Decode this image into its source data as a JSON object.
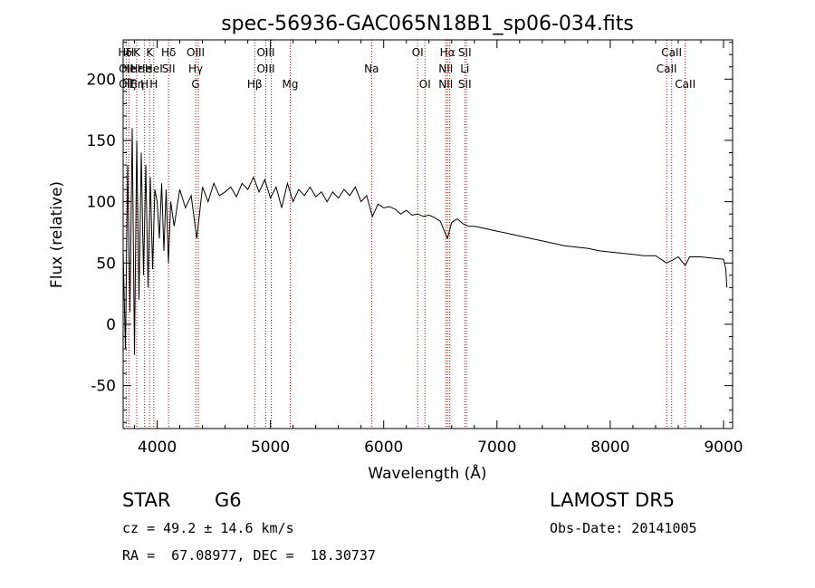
{
  "chart_data": {
    "type": "line",
    "title": "spec-56936-GAC065N18B1_sp06-034.fits",
    "xlabel": "Wavelength (Å)",
    "ylabel": "Flux (relative)",
    "xlim": [
      3700,
      9080
    ],
    "ylim": [
      -85,
      232
    ],
    "x_ticks": [
      4000,
      5000,
      6000,
      7000,
      8000,
      9000
    ],
    "y_ticks": [
      -50,
      0,
      50,
      100,
      150,
      200
    ],
    "line_color": "#000000",
    "marker_color": "#cc0000",
    "series": [
      {
        "x": [
          3700,
          3720,
          3740,
          3760,
          3780,
          3800,
          3820,
          3840,
          3860,
          3880,
          3900,
          3920,
          3940,
          3960,
          3980,
          4000,
          4020,
          4040,
          4060,
          4080,
          4100,
          4120,
          4150,
          4200,
          4250,
          4300,
          4350,
          4400,
          4450,
          4500,
          4550,
          4600,
          4650,
          4700,
          4750,
          4800,
          4850,
          4900,
          4950,
          5000,
          5050,
          5100,
          5150,
          5200,
          5250,
          5300,
          5350,
          5400,
          5450,
          5500,
          5550,
          5600,
          5650,
          5700,
          5750,
          5800,
          5850,
          5900,
          5950,
          6000,
          6050,
          6100,
          6150,
          6200,
          6250,
          6300,
          6350,
          6400,
          6450,
          6500,
          6563,
          6600,
          6650,
          6700,
          6750,
          6800,
          6900,
          7000,
          7100,
          7200,
          7300,
          7400,
          7500,
          7600,
          7700,
          7800,
          7900,
          8000,
          8100,
          8200,
          8300,
          8400,
          8498,
          8542,
          8600,
          8662,
          8700,
          8800,
          8900,
          9000,
          9020,
          9030
        ],
        "y": [
          60,
          -20,
          130,
          10,
          160,
          -25,
          150,
          20,
          140,
          40,
          130,
          30,
          120,
          45,
          110,
          100,
          70,
          115,
          60,
          110,
          50,
          100,
          80,
          110,
          95,
          105,
          70,
          112,
          100,
          115,
          105,
          108,
          112,
          104,
          115,
          110,
          120,
          108,
          118,
          103,
          112,
          95,
          115,
          100,
          110,
          105,
          112,
          104,
          108,
          100,
          108,
          103,
          110,
          105,
          112,
          100,
          105,
          88,
          98,
          95,
          96,
          94,
          90,
          93,
          89,
          90,
          88,
          89,
          87,
          84,
          70,
          83,
          86,
          82,
          80,
          80,
          78,
          76,
          74,
          72,
          70,
          68,
          66,
          64,
          63,
          62,
          60,
          59,
          58,
          57,
          56,
          56,
          50,
          52,
          55,
          48,
          55,
          55,
          54,
          53,
          45,
          30
        ]
      }
    ],
    "lines": [
      {
        "l1": "HH",
        "l2": "OII",
        "l3": "OII",
        "x": 3727
      },
      {
        "l1": "δ",
        "l2": "He",
        "l3": "Hζ",
        "x": 3750
      },
      {
        "l1": "K",
        "l2": "Hε",
        "l3": "Hη",
        "x": 3820
      },
      {
        "l1": "",
        "l2": "He",
        "l3": "H",
        "x": 3889
      },
      {
        "l1": "K",
        "l2": "",
        "l3": "",
        "x": 3934
      },
      {
        "l1": "",
        "l2": "HeI",
        "l3": "H",
        "x": 3970
      },
      {
        "l1": "Hδ",
        "l2": "SII",
        "l3": "",
        "x": 4101
      },
      {
        "l1": "OIII",
        "l2": "Hγ",
        "l3": "G",
        "x": 4340
      },
      {
        "l1": "",
        "l2": "",
        "l3": "",
        "x": 4363
      },
      {
        "l1": "",
        "l2": "",
        "l3": "Hβ",
        "x": 4861
      },
      {
        "l1": "OIII",
        "l2": "OIII",
        "l3": "",
        "x": 4959
      },
      {
        "l1": "",
        "l2": "",
        "l3": "",
        "x": 5007
      },
      {
        "l1": "",
        "l2": "",
        "l3": "Mg",
        "x": 5175
      },
      {
        "l1": "",
        "l2": "Na",
        "l3": "",
        "x": 5893
      },
      {
        "l1": "OI",
        "l2": "",
        "l3": "",
        "x": 6300
      },
      {
        "l1": "",
        "l2": "",
        "l3": "OI",
        "x": 6364
      },
      {
        "l1": "",
        "l2": "NII",
        "l3": "NII",
        "x": 6548
      },
      {
        "l1": "Hα",
        "l2": "",
        "l3": "",
        "x": 6563
      },
      {
        "l1": "",
        "l2": "",
        "l3": "",
        "x": 6583
      },
      {
        "l1": "SII",
        "l2": "Li",
        "l3": "SII",
        "x": 6716
      },
      {
        "l1": "",
        "l2": "",
        "l3": "",
        "x": 6731
      },
      {
        "l1": "",
        "l2": "CaII",
        "l3": "",
        "x": 8498
      },
      {
        "l1": "CaII",
        "l2": "",
        "l3": "",
        "x": 8542
      },
      {
        "l1": "",
        "l2": "",
        "l3": "CaII",
        "x": 8662
      }
    ]
  },
  "info": {
    "class_label": "STAR",
    "subclass": "G6",
    "survey": "LAMOST DR5",
    "cz": "cz = 49.2 ± 14.6 km/s",
    "obs_date": "Obs-Date: 20141005",
    "coords": "RA =  67.08977, DEC =  18.30737"
  }
}
